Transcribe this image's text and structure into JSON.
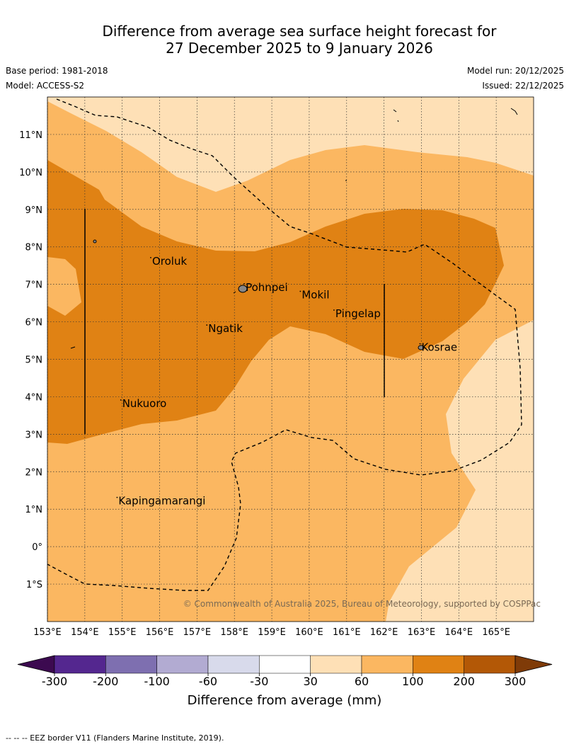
{
  "header": {
    "title_line1": "Difference from average sea surface height forecast for",
    "title_line2": "27 December 2025 to 9 January 2026",
    "base_period": "Base period: 1981-2018",
    "model": "Model: ACCESS-S2",
    "model_run": "Model run: 20/12/2025",
    "issued": "Issued: 22/12/2025"
  },
  "map": {
    "extent": {
      "lon": [
        153,
        166
      ],
      "lat": [
        -2,
        12
      ]
    },
    "lat_ticks": [
      {
        "value": 11,
        "label": "11°N"
      },
      {
        "value": 10,
        "label": "10°N"
      },
      {
        "value": 9,
        "label": "9°N"
      },
      {
        "value": 8,
        "label": "8°N"
      },
      {
        "value": 7,
        "label": "7°N"
      },
      {
        "value": 6,
        "label": "6°N"
      },
      {
        "value": 5,
        "label": "5°N"
      },
      {
        "value": 4,
        "label": "4°N"
      },
      {
        "value": 3,
        "label": "3°N"
      },
      {
        "value": 2,
        "label": "2°N"
      },
      {
        "value": 1,
        "label": "1°N"
      },
      {
        "value": 0,
        "label": "0°"
      },
      {
        "value": -1,
        "label": "1°S"
      }
    ],
    "lon_ticks": [
      {
        "value": 153,
        "label": "153°E"
      },
      {
        "value": 154,
        "label": "154°E"
      },
      {
        "value": 155,
        "label": "155°E"
      },
      {
        "value": 156,
        "label": "156°E"
      },
      {
        "value": 157,
        "label": "157°E"
      },
      {
        "value": 158,
        "label": "158°E"
      },
      {
        "value": 159,
        "label": "159°E"
      },
      {
        "value": 160,
        "label": "160°E"
      },
      {
        "value": 161,
        "label": "161°E"
      },
      {
        "value": 162,
        "label": "162°E"
      },
      {
        "value": 163,
        "label": "163°E"
      },
      {
        "value": 164,
        "label": "164°E"
      },
      {
        "value": 165,
        "label": "165°E"
      }
    ],
    "places": [
      {
        "name": "Oroluk",
        "lon": 155.8,
        "lat": 7.6
      },
      {
        "name": "Pohnpei",
        "lon": 158.3,
        "lat": 6.9
      },
      {
        "name": "Mokil",
        "lon": 159.8,
        "lat": 6.7
      },
      {
        "name": "Pingelap",
        "lon": 160.7,
        "lat": 6.2
      },
      {
        "name": "Ngatik",
        "lon": 157.3,
        "lat": 5.8
      },
      {
        "name": "Kosrae",
        "lon": 163.0,
        "lat": 5.3
      },
      {
        "name": "Nukuoro",
        "lon": 155.0,
        "lat": 3.8
      },
      {
        "name": "Kapingamarangi",
        "lon": 154.9,
        "lat": 1.2
      }
    ],
    "copyright": "© Commonwealth of Australia 2025, Bureau of Meteorology, supported by COSPPac"
  },
  "colorbar": {
    "bins": [
      {
        "color": "#3c0a50"
      },
      {
        "color": "#54278f"
      },
      {
        "color": "#7e6fb0"
      },
      {
        "color": "#b2abd2"
      },
      {
        "color": "#d8daeb"
      },
      {
        "color": "#ffffff"
      },
      {
        "color": "#fee0b6"
      },
      {
        "color": "#fbb761"
      },
      {
        "color": "#e08214"
      },
      {
        "color": "#b35806"
      },
      {
        "color": "#7f3b08"
      }
    ],
    "labels": [
      "-300",
      "-200",
      "-100",
      "-60",
      "-30",
      "30",
      "60",
      "100",
      "200",
      "300"
    ],
    "title": "Difference from average (mm)"
  },
  "footnote": "-- -- -- EEZ border V11 (Flanders Marine Institute, 2019)."
}
